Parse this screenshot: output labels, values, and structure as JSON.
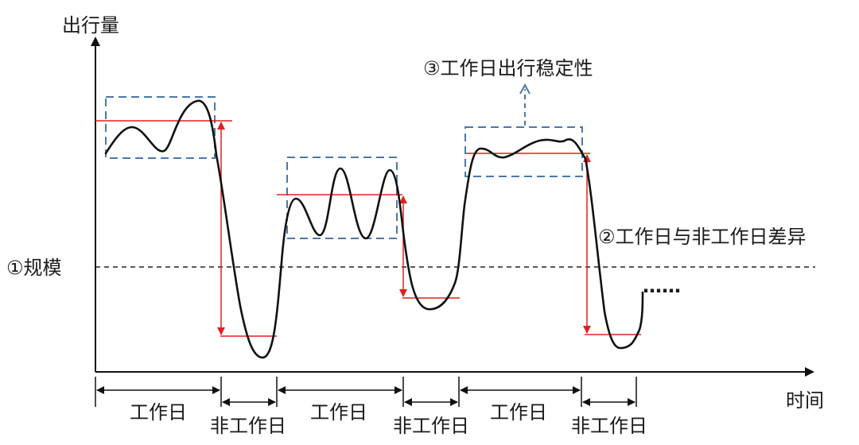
{
  "axes": {
    "y_label": "出行量",
    "x_label": "时间"
  },
  "annotations": {
    "scale": "①规模",
    "difference": "②工作日与非工作日差异",
    "stability": "③工作日出行稳定性"
  },
  "periods": [
    {
      "label": "工作日",
      "type": "workday"
    },
    {
      "label": "非工作日",
      "type": "non-workday"
    },
    {
      "label": "工作日",
      "type": "workday"
    },
    {
      "label": "非工作日",
      "type": "non-workday"
    },
    {
      "label": "工作日",
      "type": "workday"
    },
    {
      "label": "非工作日",
      "type": "non-workday"
    }
  ],
  "continuation": "……",
  "colors": {
    "curve": "#111111",
    "red": "#e0201f",
    "box": "#4a78a8",
    "axis": "#111111"
  }
}
